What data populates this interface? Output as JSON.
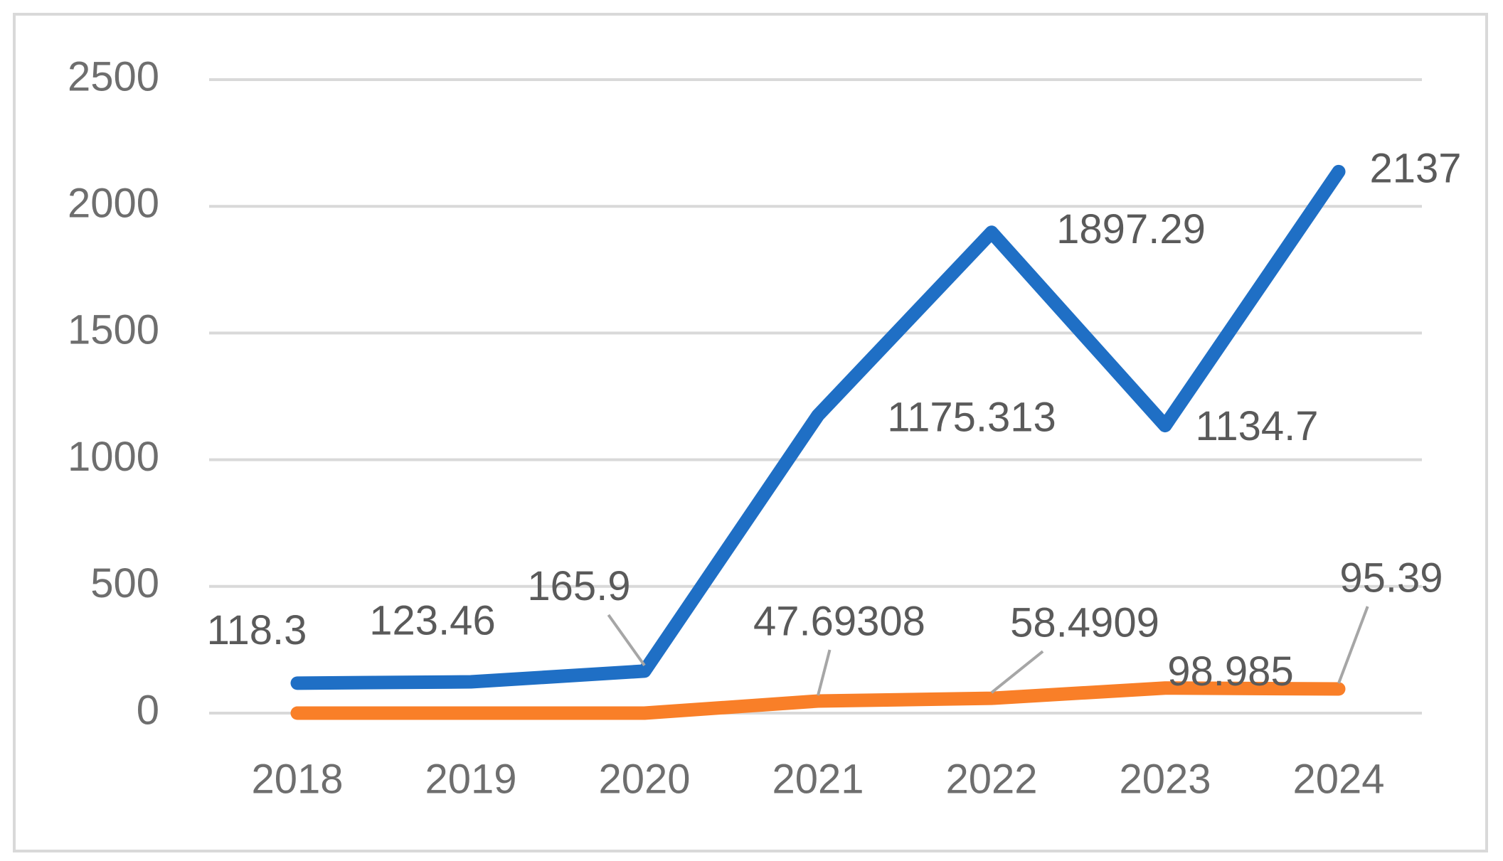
{
  "chart_data": {
    "type": "line",
    "categories": [
      "2018",
      "2019",
      "2020",
      "2021",
      "2022",
      "2023",
      "2024"
    ],
    "series": [
      {
        "color": "#1f6fc5",
        "values": [
          118.3,
          123.46,
          165.9,
          1175.313,
          1897.29,
          1134.7,
          2137
        ]
      },
      {
        "color": "#f97f28",
        "values": [
          0,
          0,
          0,
          47.69308,
          58.4909,
          98.985,
          95.39
        ],
        "value_labels": [
          null,
          null,
          null,
          "47.69308",
          "58.4909",
          "98.985",
          "95.39"
        ]
      }
    ],
    "ylim": [
      0,
      2500
    ],
    "yticks": [
      0,
      500,
      1000,
      1500,
      2000,
      2500
    ],
    "grid": true
  }
}
